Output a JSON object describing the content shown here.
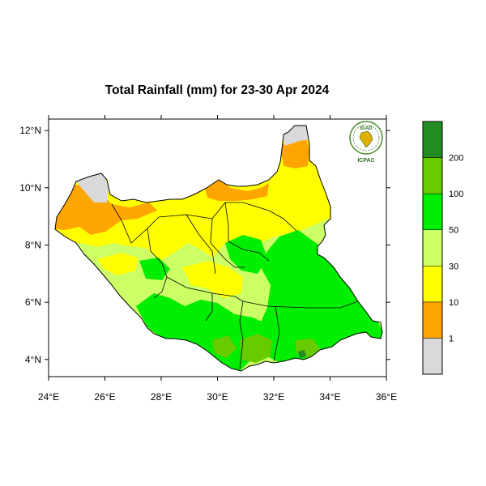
{
  "title": "Total Rainfall (mm) for 23-30 Apr 2024",
  "logo": {
    "top_text": "IGAD",
    "bottom_text": "ICPAC"
  },
  "x_ticks": [
    "24°E",
    "26°E",
    "28°E",
    "30°E",
    "32°E",
    "34°E",
    "36°E"
  ],
  "y_ticks": [
    "12°N",
    "10°N",
    "8°N",
    "6°N",
    "4°N"
  ],
  "colorbar": {
    "labels": [
      "1",
      "10",
      "30",
      "50",
      "100",
      "200"
    ],
    "colors": [
      "#d9d9d9",
      "#ffa500",
      "#ffff00",
      "#ccff66",
      "#00ee00",
      "#66cc00",
      "#228b22"
    ]
  },
  "chart_data": {
    "type": "heatmap",
    "title": "Total Rainfall (mm) for 23-30 Apr 2024",
    "units": "mm",
    "xlim": [
      24,
      36
    ],
    "ylim": [
      3.4,
      12.4
    ],
    "x_tick_values": [
      24,
      26,
      28,
      30,
      32,
      34,
      36
    ],
    "y_tick_values": [
      12,
      10,
      8,
      6,
      4
    ],
    "class_breaks": [
      1,
      10,
      30,
      50,
      100,
      200
    ],
    "region_classes": [
      {
        "area": "far north / northwest (west of 26°E, 9–10°N)",
        "range": "1-10"
      },
      {
        "area": "northern border near 30°E, 10°N",
        "range": "1-10"
      },
      {
        "area": "northeast tip (32.5–33°E, 11–12°N)",
        "range": "1-10"
      },
      {
        "area": "northern and central belt (8–10°N)",
        "range": "10-30"
      },
      {
        "area": "west and central (6–8°N)",
        "range": "30-50"
      },
      {
        "area": "eastern plains (32–35°E, 5–8°N)",
        "range": "50-100"
      },
      {
        "area": "southwest and south (27–31°E, 4–6°N)",
        "range": "50-100"
      },
      {
        "area": "southern patches near 31–33°E, 4°N",
        "range": "100-200"
      },
      {
        "area": "far northwest corner (25°E, 10°N)",
        "range": "<1"
      }
    ]
  }
}
